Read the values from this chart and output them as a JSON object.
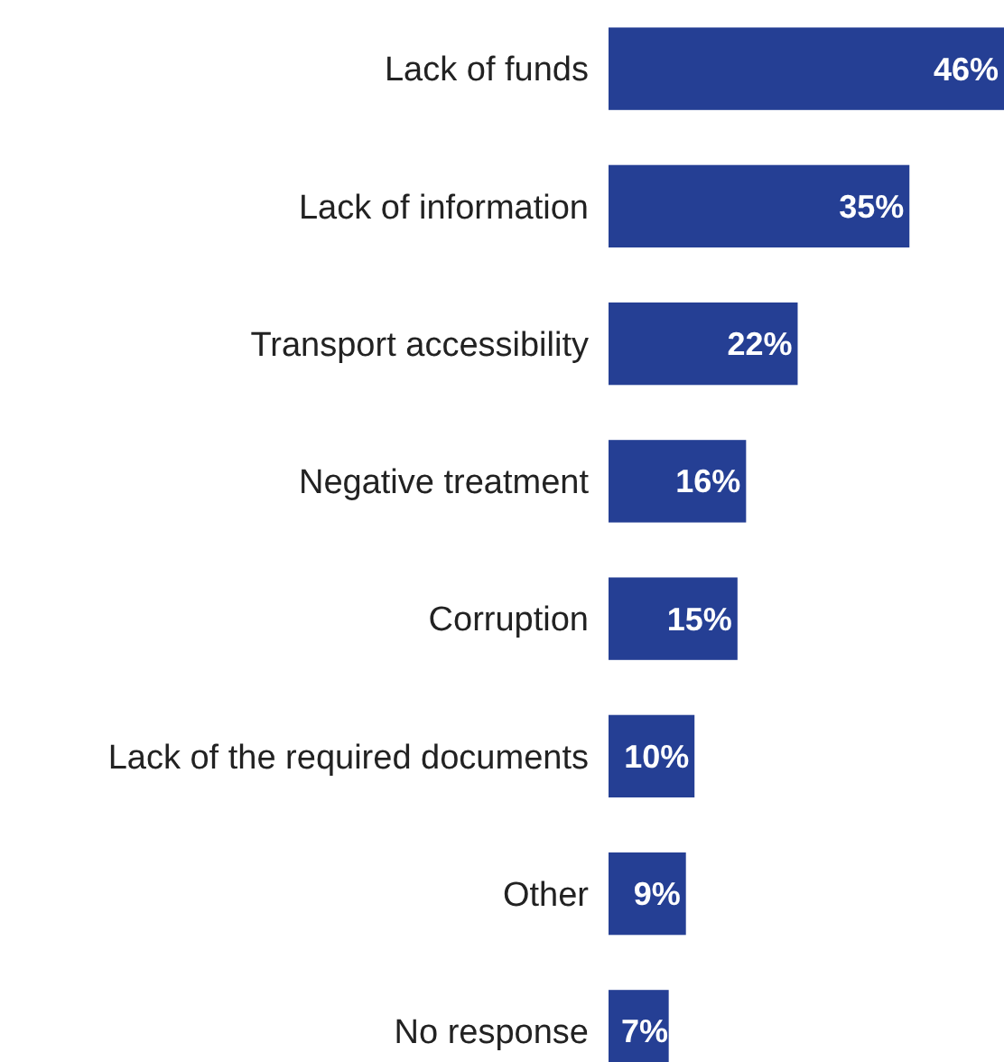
{
  "chart_data": {
    "type": "bar",
    "orientation": "horizontal",
    "categories": [
      "Lack of funds",
      "Lack of information",
      "Transport accessibility",
      "Negative treatment",
      "Corruption",
      "Lack of the required documents",
      "Other",
      "No response"
    ],
    "values": [
      46,
      35,
      22,
      16,
      15,
      10,
      9,
      7
    ],
    "value_labels": [
      "46%",
      "35%",
      "22%",
      "16%",
      "15%",
      "10%",
      "9%",
      "7%"
    ],
    "color": "#253f94",
    "xlim": [
      0,
      46
    ],
    "tick_labels": "y"
  }
}
